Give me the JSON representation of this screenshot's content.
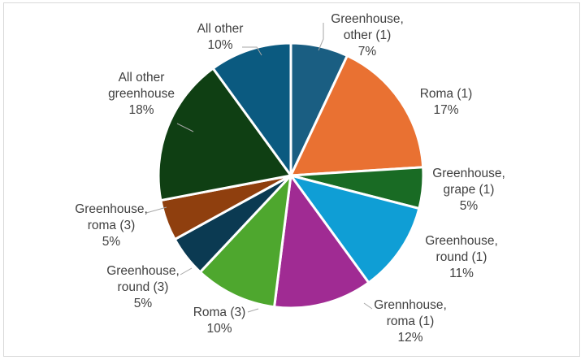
{
  "chart_data": {
    "type": "pie",
    "title": "",
    "slices": [
      {
        "label_lines": [
          "Greenhouse,",
          "other (1)"
        ],
        "value_label": "7%",
        "value": 7,
        "color": "#1a5e82"
      },
      {
        "label_lines": [
          "Roma (1)"
        ],
        "value_label": "17%",
        "value": 17,
        "color": "#e97132"
      },
      {
        "label_lines": [
          "Greenhouse,",
          "grape (1)"
        ],
        "value_label": "5%",
        "value": 5,
        "color": "#196b24"
      },
      {
        "label_lines": [
          "Greenhouse,",
          "round (1)"
        ],
        "value_label": "11%",
        "value": 11,
        "color": "#0f9ed5"
      },
      {
        "label_lines": [
          "Grennhouse,",
          "roma (1)"
        ],
        "value_label": "12%",
        "value": 12,
        "color": "#a02b93"
      },
      {
        "label_lines": [
          "Roma (3)"
        ],
        "value_label": "10%",
        "value": 10,
        "color": "#4ea72e"
      },
      {
        "label_lines": [
          "Greenhouse,",
          "round (3)"
        ],
        "value_label": "5%",
        "value": 5,
        "color": "#0b3a52"
      },
      {
        "label_lines": [
          "Greenhouse,",
          "roma (3)"
        ],
        "value_label": "5%",
        "value": 5,
        "color": "#8f3f0e"
      },
      {
        "label_lines": [
          "All other",
          "greenhouse"
        ],
        "value_label": "18%",
        "value": 18,
        "color": "#0f3f13"
      },
      {
        "label_lines": [
          "All other"
        ],
        "value_label": "10%",
        "value": 10,
        "color": "#0b5a80"
      }
    ],
    "legend": "none",
    "data_labels": "outside with leader lines"
  }
}
